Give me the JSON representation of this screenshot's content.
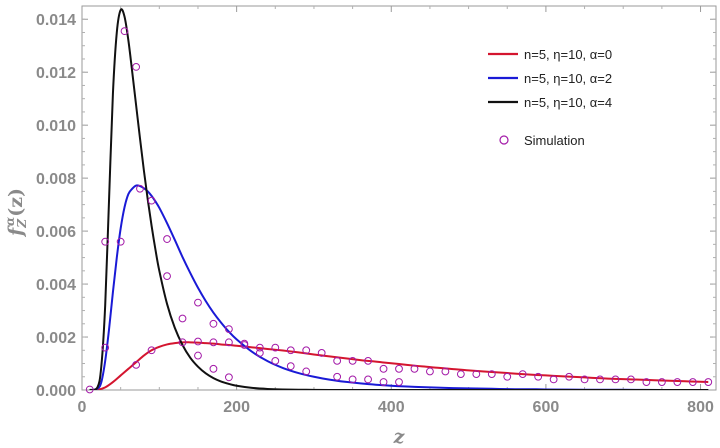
{
  "chart_data": {
    "type": "line",
    "title": "",
    "xlabel": "z",
    "ylabel_base": "f",
    "ylabel_sub": "Z",
    "ylabel_sup": "α",
    "ylabel_arg": "(z)",
    "xlim": [
      0,
      820
    ],
    "ylim": [
      0,
      0.0145
    ],
    "xticks": [
      0,
      200,
      400,
      600,
      800
    ],
    "xtick_labels": [
      "0",
      "200",
      "400",
      "600",
      "800"
    ],
    "yticks": [
      0,
      0.002,
      0.004,
      0.006,
      0.008,
      0.01,
      0.012,
      0.014
    ],
    "ytick_labels": [
      "0.000",
      "0.002",
      "0.004",
      "0.006",
      "0.008",
      "0.010",
      "0.012",
      "0.014"
    ],
    "grid": false,
    "legend_position": "top-right",
    "series": [
      {
        "name": "n=5, η=10, α=0",
        "color": "#d4152f",
        "x": [
          10,
          20,
          30,
          40,
          50,
          60,
          70,
          80,
          90,
          100,
          110,
          120,
          130,
          140,
          150,
          160,
          170,
          180,
          190,
          200,
          220,
          240,
          260,
          280,
          300,
          320,
          340,
          360,
          380,
          400,
          420,
          440,
          460,
          480,
          500,
          520,
          540,
          560,
          580,
          600,
          620,
          640,
          660,
          680,
          700,
          720,
          740,
          760,
          780,
          800,
          810
        ],
        "y": [
          0.0,
          1e-05,
          0.0001,
          0.0003,
          0.00055,
          0.0008,
          0.00105,
          0.0013,
          0.0015,
          0.00163,
          0.00172,
          0.00177,
          0.0018,
          0.0018,
          0.00179,
          0.00177,
          0.00175,
          0.00172,
          0.0017,
          0.00167,
          0.00161,
          0.00155,
          0.00149,
          0.00142,
          0.00134,
          0.00127,
          0.0012,
          0.00113,
          0.00107,
          0.00101,
          0.00095,
          0.00089,
          0.00084,
          0.00079,
          0.00074,
          0.0007,
          0.00066,
          0.00062,
          0.00058,
          0.00055,
          0.00052,
          0.00049,
          0.00046,
          0.00043,
          0.00041,
          0.00039,
          0.00037,
          0.00035,
          0.00033,
          0.00031,
          0.0003
        ]
      },
      {
        "name": "n=5, η=10, α=2",
        "color": "#1a1ad6",
        "x": [
          10,
          20,
          25,
          30,
          35,
          40,
          45,
          50,
          55,
          60,
          65,
          70,
          75,
          80,
          85,
          90,
          95,
          100,
          110,
          120,
          130,
          140,
          150,
          160,
          170,
          180,
          190,
          200,
          220,
          240,
          260,
          280,
          300,
          320,
          340,
          360,
          380,
          400,
          420,
          440,
          460,
          480,
          500,
          520,
          540,
          560,
          580,
          600,
          650,
          700,
          750,
          800,
          810
        ],
        "y": [
          0.0,
          5e-05,
          0.0003,
          0.0011,
          0.0023,
          0.0037,
          0.005,
          0.0061,
          0.0069,
          0.0074,
          0.0076,
          0.00772,
          0.0077,
          0.00762,
          0.0075,
          0.00733,
          0.00712,
          0.00688,
          0.0063,
          0.00567,
          0.00502,
          0.00442,
          0.00386,
          0.00336,
          0.00292,
          0.00254,
          0.0022,
          0.00191,
          0.00144,
          0.00109,
          0.00083,
          0.00064,
          0.0005,
          0.00039,
          0.00031,
          0.00025,
          0.0002,
          0.00016,
          0.00013,
          0.00011,
          9e-05,
          7e-05,
          6e-05,
          5e-05,
          4e-05,
          3e-05,
          3e-05,
          2e-05,
          1e-05,
          1e-05,
          0.0,
          0.0,
          0.0
        ]
      },
      {
        "name": "n=5, η=10, α=4",
        "color": "#111111",
        "x": [
          10,
          20,
          25,
          30,
          35,
          40,
          45,
          50,
          55,
          60,
          65,
          70,
          75,
          80,
          85,
          90,
          95,
          100,
          110,
          120,
          130,
          140,
          150,
          160,
          170,
          180,
          190,
          200,
          220,
          240,
          260,
          280,
          300,
          320,
          340,
          360,
          400,
          450,
          500,
          600,
          700,
          810
        ],
        "y": [
          0.0,
          0.0001,
          0.0009,
          0.0032,
          0.0072,
          0.0112,
          0.0135,
          0.01435,
          0.0141,
          0.0132,
          0.012,
          0.01075,
          0.0095,
          0.0083,
          0.0072,
          0.0062,
          0.0053,
          0.0045,
          0.00325,
          0.00235,
          0.0017,
          0.00122,
          0.00088,
          0.00063,
          0.00045,
          0.00032,
          0.00023,
          0.00016,
          8e-05,
          4e-05,
          2e-05,
          1e-05,
          5e-06,
          0.0,
          0.0,
          0.0,
          0.0,
          0.0,
          0.0,
          0.0,
          0.0,
          0.0
        ]
      },
      {
        "name": "Simulation",
        "type": "scatter",
        "color": "#a31aa8",
        "x": [
          10,
          30,
          30,
          50,
          55,
          70,
          70,
          75,
          90,
          90,
          110,
          110,
          130,
          130,
          150,
          150,
          150,
          170,
          170,
          170,
          190,
          190,
          190,
          210,
          210,
          230,
          230,
          250,
          250,
          270,
          270,
          290,
          290,
          310,
          330,
          330,
          350,
          350,
          370,
          370,
          390,
          390,
          410,
          410,
          430,
          450,
          470,
          490,
          510,
          530,
          550,
          570,
          590,
          610,
          630,
          650,
          670,
          690,
          710,
          730,
          750,
          770,
          790,
          810
        ],
        "y": [
          2e-05,
          0.0016,
          0.0056,
          0.0056,
          0.01355,
          0.0122,
          0.00095,
          0.0076,
          0.00715,
          0.0015,
          0.0043,
          0.0057,
          0.0018,
          0.0027,
          0.00183,
          0.0033,
          0.0013,
          0.0018,
          0.0025,
          0.0008,
          0.0018,
          0.0023,
          0.00048,
          0.0017,
          0.00175,
          0.0016,
          0.0014,
          0.0016,
          0.0011,
          0.0015,
          0.0009,
          0.0015,
          0.0007,
          0.0014,
          0.0011,
          0.0005,
          0.0011,
          0.0004,
          0.0011,
          0.0004,
          0.0008,
          0.0003,
          0.0008,
          0.0003,
          0.0008,
          0.0007,
          0.0007,
          0.0006,
          0.0006,
          0.0006,
          0.0005,
          0.0006,
          0.0005,
          0.0004,
          0.0005,
          0.0004,
          0.0004,
          0.0004,
          0.0004,
          0.0003,
          0.0003,
          0.0003,
          0.0003,
          0.0003
        ]
      }
    ]
  }
}
